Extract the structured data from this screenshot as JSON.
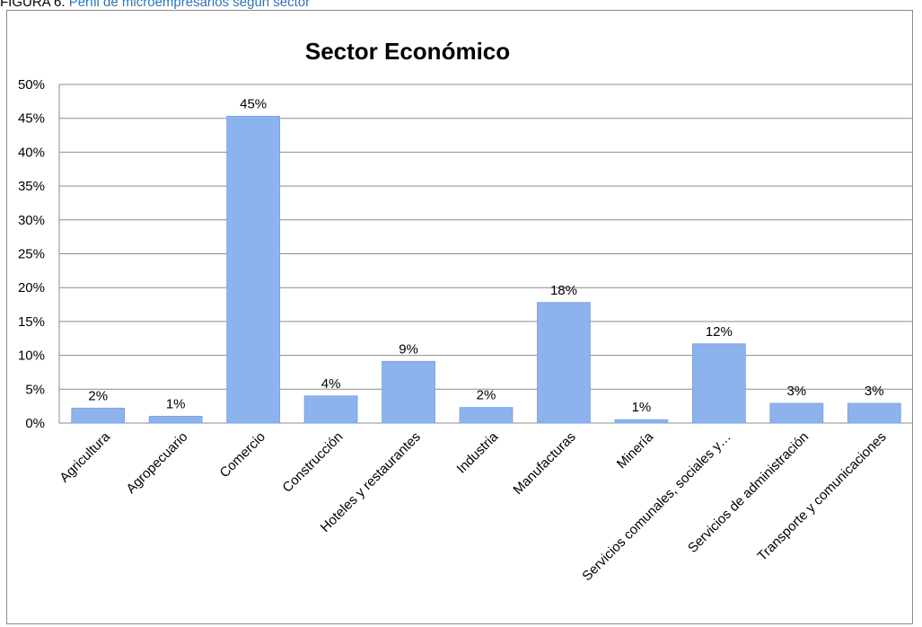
{
  "caption": {
    "label": "FIGURA 6.",
    "title": "Perfil de microempresarios según sector"
  },
  "colors": {
    "bar": "#8db3ee",
    "bar_stroke": "#7ea4df",
    "grid": "#8c8c8c",
    "caption_title": "#2e75b6"
  },
  "chart_data": {
    "type": "bar",
    "title": "Sector Económico",
    "xlabel": "",
    "ylabel": "",
    "ylim": [
      0,
      50
    ],
    "ytick_step": 5,
    "ytick_suffix": "%",
    "grid": true,
    "legend": "none",
    "categories": [
      "Agricultura",
      "Agropecuario",
      "Comercio",
      "Construcción",
      "Hoteles y restaurantes",
      "Industria",
      "Manufacturas",
      "Minería",
      "Servicios comunales, sociales y…",
      "Servicios de administración",
      "Transporte y comunicaciones"
    ],
    "values": [
      2.2,
      1.0,
      45.3,
      4.0,
      9.1,
      2.3,
      17.8,
      0.5,
      11.7,
      2.9,
      2.9
    ],
    "data_labels": [
      "2%",
      "1%",
      "45%",
      "4%",
      "9%",
      "2%",
      "18%",
      "1%",
      "12%",
      "3%",
      "3%"
    ]
  }
}
